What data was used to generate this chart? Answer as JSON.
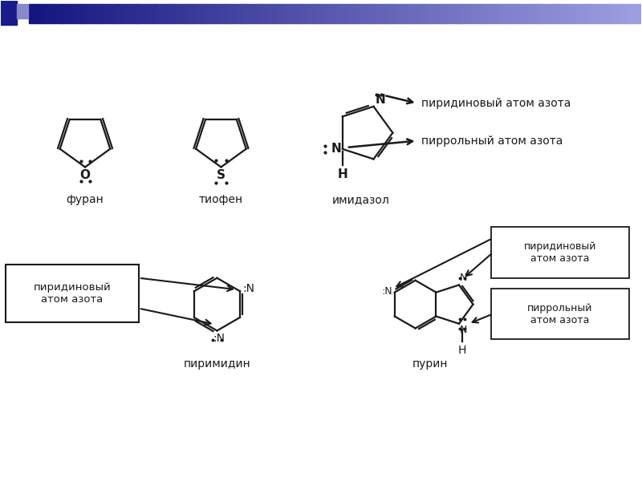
{
  "bg_color": "#ffffff",
  "furan_label": "фуран",
  "thiophene_label": "тиофен",
  "imidazole_label": "имидазол",
  "pyrimidine_label": "пиримидин",
  "purine_label": "пурин",
  "pyridine_n_label": "пиридиновый атом азота",
  "pyrrole_n_label": "пиррольный атом азота",
  "pyridine_n_label2": "пиридиновый\nатом азота",
  "pyridine_n_label3": "пиридиновый\nатом азота",
  "pyrrole_n_label3": "пиррольный\nатом азота",
  "black": "#1a1a1a",
  "lw": 1.6,
  "ring_scale5": 0.33,
  "ring_scale6": 0.3
}
